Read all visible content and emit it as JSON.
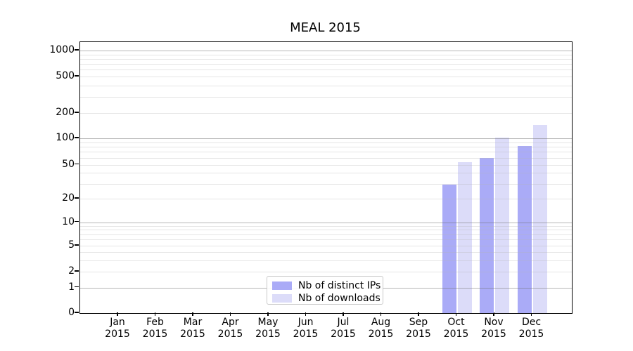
{
  "chart_data": {
    "type": "bar",
    "title": "MEAL 2015",
    "categories": [
      "Jan 2015",
      "Feb 2015",
      "Mar 2015",
      "Apr 2015",
      "May 2015",
      "Jun 2015",
      "Jul 2015",
      "Aug 2015",
      "Sep 2015",
      "Oct 2015",
      "Nov 2015",
      "Dec 2015"
    ],
    "series": [
      {
        "name": "Nb of distinct IPs",
        "color": "#aaabf7",
        "values": [
          0,
          0,
          0,
          0,
          0,
          0,
          0,
          0,
          0,
          29,
          60,
          82
        ]
      },
      {
        "name": "Nb of downloads",
        "color": "#dcdcf9",
        "values": [
          0,
          0,
          0,
          0,
          0,
          0,
          0,
          0,
          0,
          53,
          102,
          144
        ]
      }
    ],
    "xlabel": "",
    "ylabel": "",
    "y_axis": {
      "scale": "symlog",
      "ticks": [
        0,
        1,
        2,
        5,
        10,
        20,
        50,
        100,
        200,
        500,
        1000
      ],
      "range": [
        0,
        1250
      ]
    },
    "grid": "horizontal major and log-minor gridlines",
    "legend_position": "inside bottom-center"
  },
  "colors": {
    "bar_distinct_ips": "#aaabf7",
    "bar_downloads": "#dcdcf9",
    "major_gridline": "#b3b3b3",
    "minor_gridline": "#ececec",
    "axis": "#000000",
    "legend_border": "#c9c9c9",
    "background": "#ffffff"
  }
}
